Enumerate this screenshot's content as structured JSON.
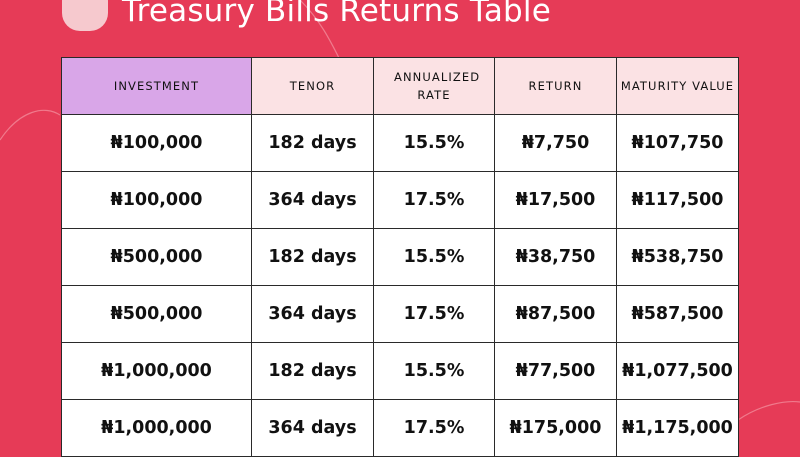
{
  "title": "Treasury Bills Returns Table",
  "colors": {
    "background": "#E63B57",
    "header_first": "#D9A6E8",
    "header": "#FBE2E4",
    "logo": "#F6C9CE"
  },
  "table": {
    "headers": [
      "INVESTMENT",
      "TENOR",
      "ANNUALIZED RATE",
      "RETURN",
      "MATURITY VALUE"
    ],
    "rows": [
      [
        "₦100,000",
        "182 days",
        "15.5%",
        "₦7,750",
        "₦107,750"
      ],
      [
        "₦100,000",
        "364 days",
        "17.5%",
        "₦17,500",
        "₦117,500"
      ],
      [
        "₦500,000",
        "182 days",
        "15.5%",
        "₦38,750",
        "₦538,750"
      ],
      [
        "₦500,000",
        "364 days",
        "17.5%",
        "₦87,500",
        "₦587,500"
      ],
      [
        "₦1,000,000",
        "182 days",
        "15.5%",
        "₦77,500",
        "₦1,077,500"
      ],
      [
        "₦1,000,000",
        "364 days",
        "17.5%",
        "₦175,000",
        "₦1,175,000"
      ]
    ]
  }
}
